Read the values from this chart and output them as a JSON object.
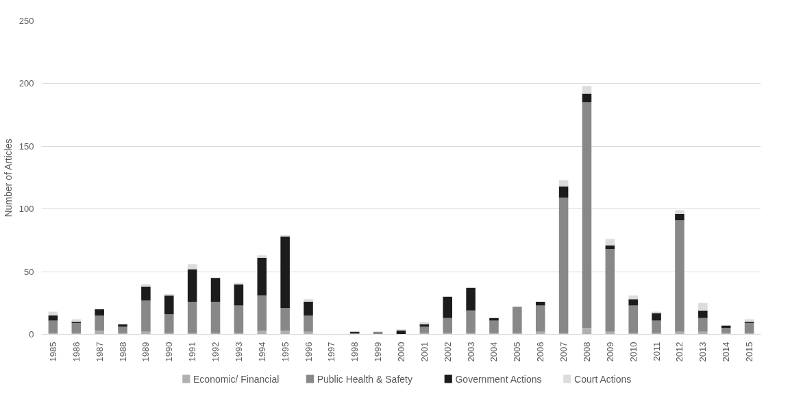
{
  "chart_data": {
    "type": "bar",
    "stacked": true,
    "ylabel": "Number of Articles",
    "categories": [
      "1985",
      "1986",
      "1987",
      "1988",
      "1989",
      "1990",
      "1991",
      "1992",
      "1993",
      "1994",
      "1995",
      "1996",
      "1997",
      "1998",
      "1999",
      "2000",
      "2001",
      "2002",
      "2003",
      "2004",
      "2005",
      "2006",
      "2007",
      "2008",
      "2009",
      "2010",
      "2011",
      "2012",
      "2013",
      "2014",
      "2015"
    ],
    "series": [
      {
        "name": "Economic/ Financial",
        "color": "#b0b0b0",
        "values": [
          1,
          1,
          3,
          1,
          2,
          1,
          1,
          1,
          1,
          3,
          3,
          2,
          0,
          0,
          0,
          0,
          1,
          1,
          1,
          1,
          1,
          2,
          1,
          5,
          2,
          1,
          1,
          2,
          2,
          1,
          1
        ]
      },
      {
        "name": "Public Health & Safety",
        "color": "#888888",
        "values": [
          10,
          8,
          12,
          5,
          25,
          15,
          25,
          25,
          22,
          28,
          18,
          13,
          0,
          1,
          2,
          0,
          5,
          12,
          18,
          10,
          21,
          21,
          108,
          180,
          66,
          22,
          10,
          89,
          11,
          4,
          8
        ]
      },
      {
        "name": "Government Actions",
        "color": "#1c1c1c",
        "values": [
          4,
          1,
          5,
          2,
          11,
          15,
          26,
          19,
          17,
          30,
          57,
          11,
          0,
          1,
          0,
          3,
          2,
          17,
          18,
          2,
          0,
          3,
          9,
          7,
          3,
          5,
          6,
          5,
          6,
          2,
          1
        ]
      },
      {
        "name": "Court Actions",
        "color": "#dcdcdc",
        "values": [
          3,
          2,
          0,
          0,
          2,
          1,
          4,
          0,
          1,
          2,
          1,
          2,
          0,
          0,
          0,
          1,
          2,
          0,
          0,
          0,
          0,
          0,
          5,
          6,
          5,
          3,
          1,
          3,
          6,
          0,
          2
        ]
      }
    ],
    "ylim": [
      0,
      250
    ],
    "yticks": [
      0,
      50,
      100,
      150,
      200,
      250
    ],
    "grid": "y",
    "legend": "bottom"
  }
}
